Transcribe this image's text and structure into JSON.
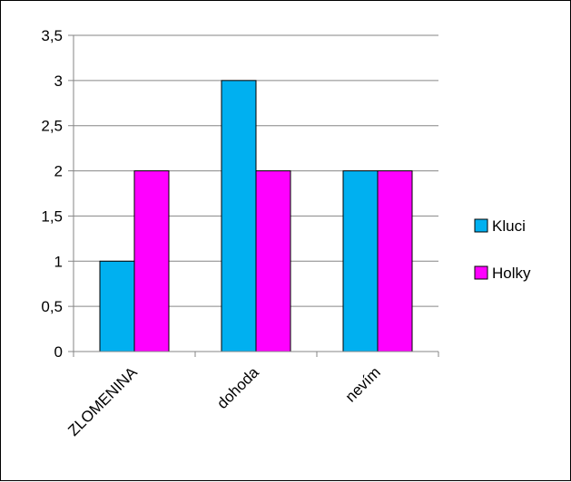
{
  "chart_data": {
    "type": "bar",
    "categories": [
      "ZLOMENINA",
      "dohoda",
      "nevím"
    ],
    "series": [
      {
        "name": "Kluci",
        "values": [
          1,
          3,
          2
        ],
        "color": "#00B0F0"
      },
      {
        "name": "Holky",
        "values": [
          2,
          2,
          2
        ],
        "color": "#FF00FF"
      }
    ],
    "ylim": [
      0,
      3.5
    ],
    "yticks": [
      "0",
      "0,5",
      "1",
      "1,5",
      "2",
      "2,5",
      "3",
      "3,5"
    ],
    "grid": "horizontal",
    "legend_position": "right",
    "title": "",
    "xlabel": "",
    "ylabel": ""
  }
}
